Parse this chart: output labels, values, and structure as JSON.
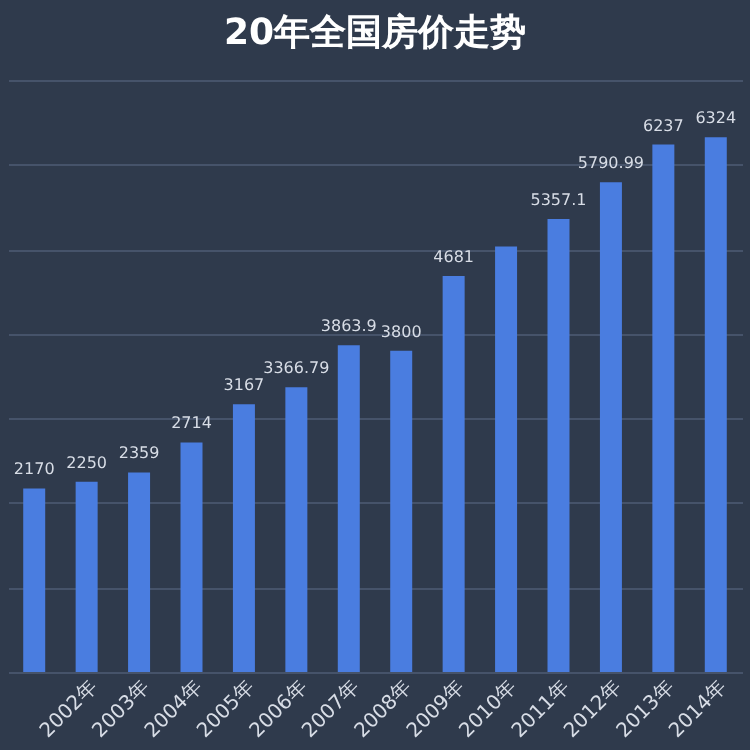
{
  "chart_data": {
    "type": "bar",
    "title": "20年全国房价走势",
    "categories": [
      null,
      "2002年",
      "2003年",
      "2004年",
      "2005年",
      "2006年",
      "2007年",
      "2008年",
      "2009年",
      "2010年",
      "2011年",
      "2012年",
      "2013年",
      "2014年"
    ],
    "values": [
      2170,
      2250,
      2359,
      2714,
      3167,
      3366.79,
      3863.9,
      3800,
      4681,
      5032,
      5357.1,
      5790.99,
      6237,
      6324
    ],
    "value_labels": [
      "2170",
      "2250",
      "2359",
      "2714",
      "3167",
      "3366.79",
      "3863.9",
      "3800",
      "4681",
      null,
      "5357.1",
      "5790.99",
      "6237",
      "6324"
    ],
    "color": "#4a7de0",
    "ylim": [
      0,
      7000
    ],
    "yticks": [
      {
        "value": 0,
        "label": null
      },
      {
        "value": 1000,
        "label": null
      },
      {
        "value": 2000,
        "label": null
      },
      {
        "value": 3000,
        "label": null
      },
      {
        "value": 4000,
        "label": null
      },
      {
        "value": 5000,
        "label": null
      },
      {
        "value": 6000,
        "label": null
      },
      {
        "value": 7000,
        "label": null
      }
    ],
    "grid": "y",
    "tick_labels": "x"
  }
}
